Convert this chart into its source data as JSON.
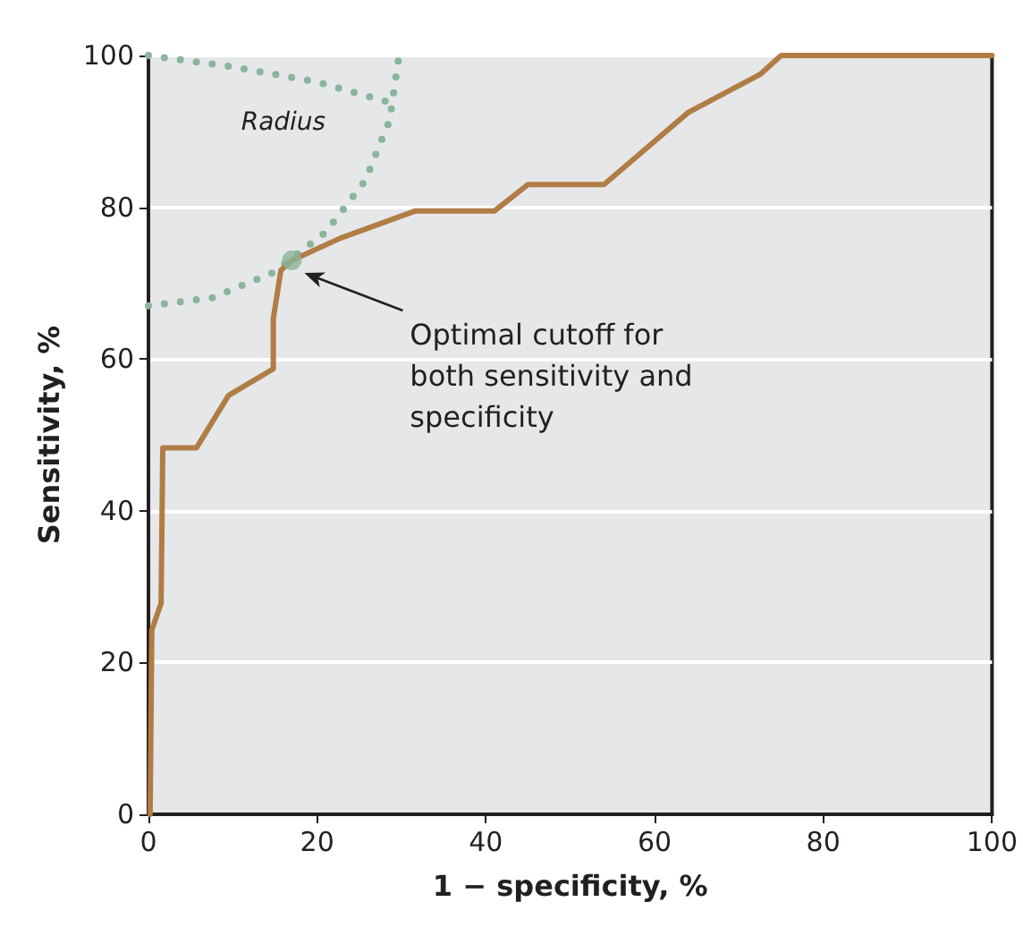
{
  "chart_data": {
    "type": "line",
    "xlabel": "1 − specificity, %",
    "ylabel": "Sensitivity, %",
    "xlim": [
      0,
      100
    ],
    "xticks": [
      0,
      20,
      40,
      60,
      80,
      100
    ],
    "ylim": [
      0,
      100
    ],
    "yticks": [
      0,
      20,
      40,
      60,
      80,
      100
    ],
    "grid": "y",
    "series": [
      {
        "color": "#b07d45",
        "marker": "none",
        "line_style": "solid",
        "x": [
          0.2,
          0.4,
          1.5,
          1.7,
          5.7,
          9.5,
          14.8,
          14.8,
          15.7,
          17,
          22.7,
          31.6,
          41,
          45,
          54,
          64,
          72.5,
          75,
          100
        ],
        "values": [
          0,
          24.3,
          27.8,
          48.3,
          48.3,
          55.2,
          58.7,
          65.3,
          71.7,
          73,
          75.9,
          79.5,
          79.5,
          83,
          83,
          92.5,
          97.5,
          100,
          100
        ]
      },
      {
        "color": "#8ab59a",
        "marker": "none",
        "line_style": "dotted",
        "x": [
          0,
          7.7,
          14.8,
          21,
          25.7,
          28.6,
          29.7
        ],
        "values": [
          67,
          68.1,
          71.4,
          76.7,
          83.5,
          91.5,
          100
        ]
      },
      {
        "color": "#8ab59a",
        "marker": "none",
        "line_style": "dotted",
        "x": [
          0,
          10,
          20,
          27,
          29.7
        ],
        "values": [
          100,
          98.5,
          96.5,
          94.3,
          93.5
        ]
      },
      {
        "type": "scatter",
        "color": "#8ab59a",
        "marker": "circle",
        "x": [
          17
        ],
        "values": [
          73
        ]
      }
    ],
    "annotations": [
      {
        "text": "Radius",
        "x": 16,
        "y": 97
      },
      "Optimal cutoff for\nboth sensitivity and\nspecificity"
    ]
  }
}
